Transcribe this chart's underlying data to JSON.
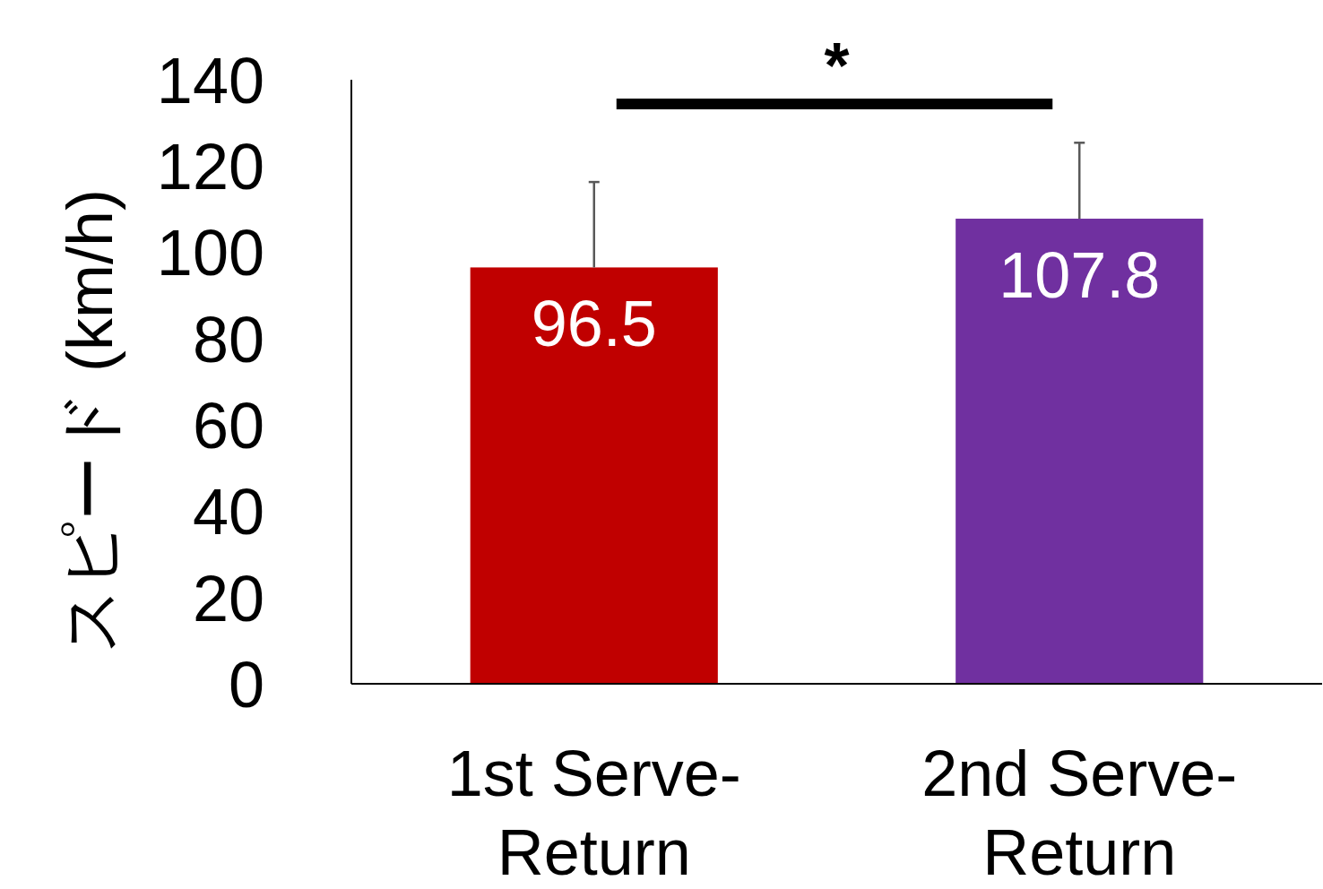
{
  "chart_data": {
    "type": "bar",
    "ylabel": "スピード (km/h)",
    "categories": [
      "1st Serve-Return",
      "2nd Serve-Return"
    ],
    "values": [
      96.5,
      107.8
    ],
    "colors": [
      "#c00000",
      "#7030a0"
    ],
    "errors": [
      [
        96.5,
        116.3
      ],
      [
        107.8,
        125.4
      ]
    ],
    "ylim": [
      0,
      140
    ],
    "yticks": [
      0,
      20,
      40,
      60,
      80,
      100,
      120,
      140
    ],
    "data_labels": true,
    "grid": false,
    "annotations": [
      "*"
    ]
  }
}
